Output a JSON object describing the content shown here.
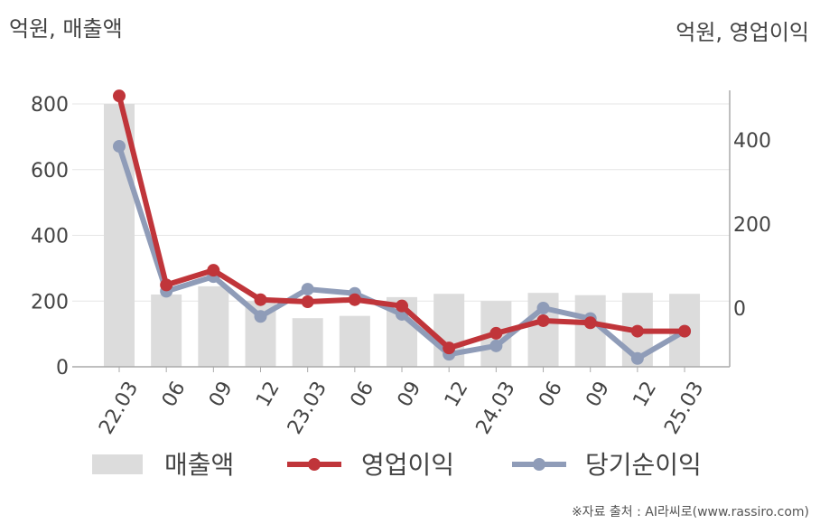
{
  "unit_left": "억원, 매출액",
  "unit_right": "억원, 영업이익",
  "source": "※자료 출처 : AI라씨로(www.rassiro.com)",
  "colors": {
    "revenue": "#dcdcdc",
    "operating": "#c0353a",
    "net": "#8f9cb8"
  },
  "chart_data": {
    "type": "bar",
    "categories": [
      "22.03",
      "06",
      "09",
      "12",
      "23.03",
      "06",
      "09",
      "12",
      "24.03",
      "06",
      "09",
      "12",
      "25.03"
    ],
    "left_axis": {
      "ylim": [
        0,
        800
      ],
      "ticks": [
        "0",
        "200",
        "400",
        "600",
        "800"
      ]
    },
    "right_axis": {
      "ylim": [
        0,
        400
      ],
      "ticks": [
        "0",
        "200",
        "400"
      ]
    },
    "series": [
      {
        "name": "매출액",
        "type": "bar",
        "axis": "left",
        "values": [
          800,
          220,
          245,
          200,
          148,
          155,
          212,
          222,
          200,
          225,
          218,
          225,
          222
        ]
      },
      {
        "name": "영업이익",
        "type": "line",
        "axis": "right",
        "values": [
          505,
          55,
          90,
          20,
          15,
          20,
          5,
          -95,
          -60,
          -30,
          -35,
          -55,
          -55
        ]
      },
      {
        "name": "당기순이익",
        "type": "line",
        "axis": "right",
        "values": [
          385,
          40,
          75,
          -20,
          45,
          35,
          -15,
          -110,
          -90,
          0,
          -25,
          -120,
          -55
        ]
      }
    ]
  }
}
